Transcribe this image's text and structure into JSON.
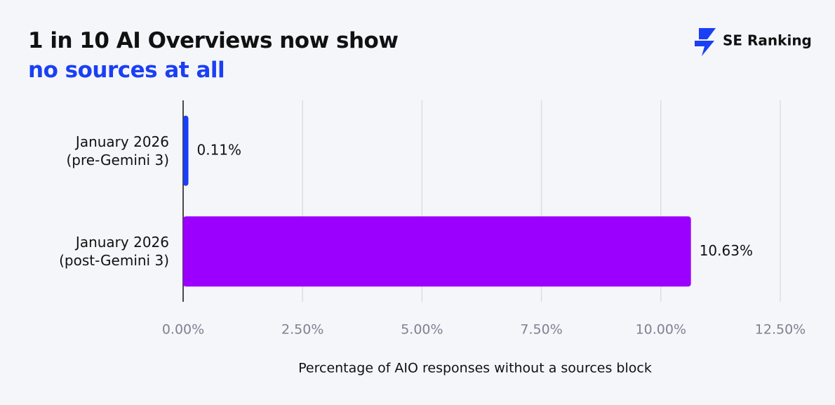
{
  "logo": "SE Ranking",
  "chart_data": {
    "type": "bar",
    "orientation": "horizontal",
    "title": "1 in 10 AI Overviews now show",
    "subtitle": "no sources at all",
    "categories": [
      "January 2026\n(pre-Gemini 3)",
      "January 2026\n(post-Gemini 3)"
    ],
    "values": [
      0.11,
      10.63
    ],
    "value_labels": [
      "0.11%",
      "10.63%"
    ],
    "colors": [
      "#1a3ff5",
      "#9b00ff"
    ],
    "xlim": [
      0,
      12.5
    ],
    "xticks": [
      {
        "value": 0,
        "label": "0.00%"
      },
      {
        "value": 2.5,
        "label": "2.50%"
      },
      {
        "value": 5,
        "label": "5.00%"
      },
      {
        "value": 7.5,
        "label": "7.50%"
      },
      {
        "value": 10,
        "label": "10.00%"
      },
      {
        "value": 12.5,
        "label": "12.50%"
      }
    ],
    "xlabel": "Percentage of AIO responses without a sources block",
    "grid": true
  }
}
